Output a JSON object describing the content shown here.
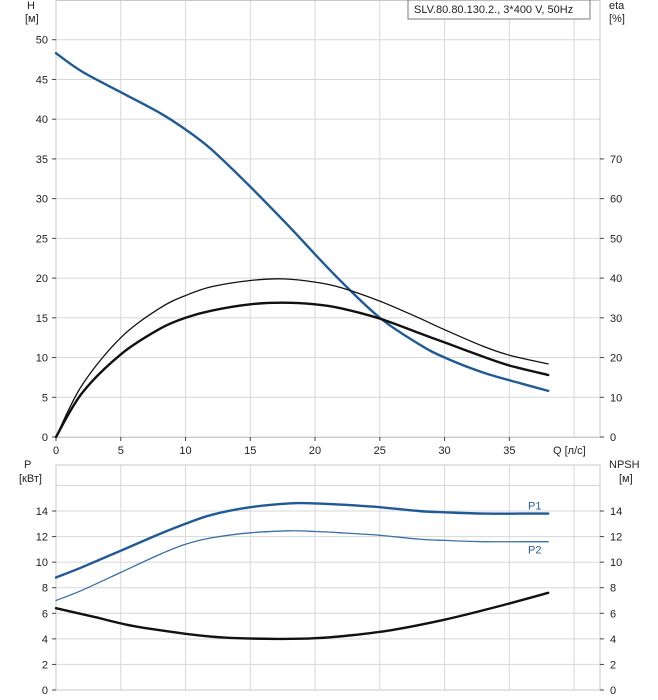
{
  "chart_data": [
    {
      "panel": "top",
      "type": "line",
      "title": "SLV.80.80.130.2., 3*400 V, 50Hz",
      "xlabel": "Q [л/с]",
      "ylabel_left": [
        "H",
        "[м]"
      ],
      "ylabel_right": [
        "eta",
        "[%]"
      ],
      "xlim": [
        0,
        42
      ],
      "ylim_left": [
        0,
        55
      ],
      "ylim_right": [
        0,
        110
      ],
      "x_ticks": [
        0,
        5,
        10,
        15,
        20,
        25,
        30,
        35
      ],
      "y_ticks_left": [
        0,
        5,
        10,
        15,
        20,
        25,
        30,
        35,
        40,
        45,
        50
      ],
      "y_ticks_right": [
        0,
        10,
        20,
        30,
        40,
        50,
        60,
        70
      ],
      "grid": true,
      "series": [
        {
          "axis": "left",
          "color": "#1f5a96",
          "width": 2.4,
          "x": [
            0,
            2,
            5,
            8,
            10,
            12,
            15,
            18,
            20,
            22,
            25,
            28,
            30,
            33,
            36,
            38
          ],
          "y": [
            48.3,
            46,
            43.4,
            40.8,
            38.7,
            36.2,
            31.5,
            26.5,
            23,
            19.6,
            15,
            11.7,
            10,
            8.1,
            6.7,
            5.8
          ]
        },
        {
          "axis": "left",
          "color": "#111111",
          "width": 1.3,
          "x": [
            0,
            2,
            5,
            8,
            10,
            12,
            15,
            17.5,
            20,
            22,
            25,
            28,
            30,
            33,
            35,
            38
          ],
          "y": [
            0,
            6.5,
            12.5,
            16.2,
            17.8,
            18.9,
            19.7,
            19.9,
            19.5,
            18.8,
            17.1,
            15,
            13.5,
            11.4,
            10.3,
            9.2
          ]
        },
        {
          "axis": "left",
          "color": "#111111",
          "width": 2.4,
          "x": [
            0,
            2,
            5,
            8,
            10,
            12,
            15,
            17.5,
            20,
            22,
            25,
            28,
            30,
            33,
            35,
            38
          ],
          "y": [
            0,
            5.5,
            10.4,
            13.6,
            15,
            15.9,
            16.7,
            16.9,
            16.7,
            16.2,
            14.9,
            13.1,
            11.9,
            10.1,
            9,
            7.8
          ]
        }
      ]
    },
    {
      "panel": "bottom",
      "type": "line",
      "ylabel_left": [
        "P",
        "[кВт]"
      ],
      "ylabel_right": [
        "NPSH",
        "[м]"
      ],
      "xlim": [
        0,
        42
      ],
      "ylim": [
        0,
        17.6
      ],
      "y_ticks_left": [
        0,
        2,
        4,
        6,
        8,
        10,
        12,
        14
      ],
      "y_ticks_right": [
        0,
        2,
        4,
        6,
        8,
        10,
        12,
        14
      ],
      "grid": true,
      "series": [
        {
          "name": "P1",
          "color": "#1f5a96",
          "width": 2.4,
          "x": [
            0,
            2,
            5,
            8,
            10,
            12,
            15,
            18,
            20,
            22,
            25,
            28,
            30,
            33,
            36,
            38
          ],
          "y": [
            8.8,
            9.6,
            10.9,
            12.2,
            13,
            13.7,
            14.3,
            14.6,
            14.6,
            14.5,
            14.3,
            14,
            13.9,
            13.8,
            13.8,
            13.8
          ]
        },
        {
          "name": "P2",
          "color": "#3a6fa8",
          "width": 1.3,
          "x": [
            0,
            2,
            5,
            8,
            10,
            12,
            15,
            18,
            20,
            22,
            25,
            28,
            30,
            33,
            36,
            38
          ],
          "y": [
            7,
            7.8,
            9.2,
            10.6,
            11.4,
            11.9,
            12.3,
            12.45,
            12.4,
            12.3,
            12.1,
            11.8,
            11.7,
            11.6,
            11.6,
            11.6
          ]
        },
        {
          "color": "#111111",
          "width": 2.4,
          "x": [
            0,
            3,
            6,
            10,
            13,
            17,
            20,
            23,
            26,
            30,
            34,
            38
          ],
          "y": [
            6.4,
            5.7,
            5,
            4.4,
            4.1,
            4,
            4.05,
            4.3,
            4.7,
            5.5,
            6.5,
            7.6
          ]
        }
      ]
    }
  ]
}
